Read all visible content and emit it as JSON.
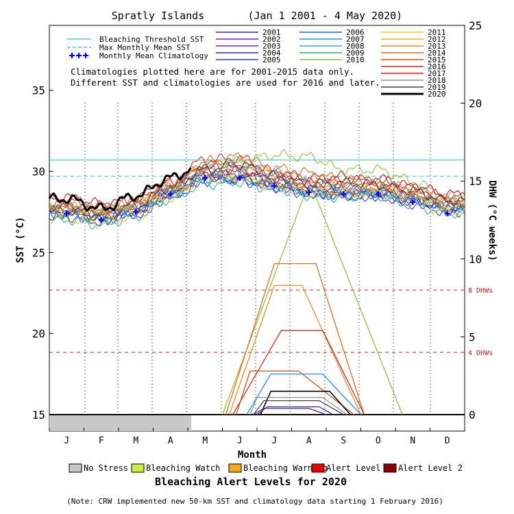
{
  "chart_data": {
    "type": "line",
    "title": "Spratly Islands       (Jan 1 2001 - 4 May 2020)",
    "xlabel": "Month",
    "ylabel_left": "SST (°C)",
    "ylabel_right": "DHW (°C weeks)",
    "ylim_left": [
      15,
      39
    ],
    "ylim_right": [
      0,
      25
    ],
    "yticks_left": [
      "15",
      "20",
      "25",
      "30",
      "35"
    ],
    "yticks_right": [
      "0",
      "5",
      "10",
      "15",
      "20",
      "25"
    ],
    "x_ticks": [
      "J",
      "F",
      "M",
      "A",
      "M",
      "J",
      "J",
      "A",
      "S",
      "O",
      "N",
      "D"
    ],
    "reference_lines": {
      "bleaching_threshold_sst": 30.7,
      "max_monthly_mean_sst": 29.7,
      "dhw_4": 4,
      "dhw_8": 8,
      "dhw_4_label": "4 DHWs",
      "dhw_8_label": "8 DHWs"
    },
    "monthly_mean_climatology": {
      "months": [
        "J",
        "F",
        "M",
        "A",
        "M",
        "J",
        "J",
        "A",
        "S",
        "O",
        "N",
        "D"
      ],
      "values": [
        27.4,
        27.0,
        27.5,
        28.6,
        29.6,
        29.6,
        29.1,
        28.7,
        28.6,
        28.6,
        28.1,
        27.4
      ]
    },
    "alert_2020": {
      "status": "No Stress",
      "through_month": 4.1
    },
    "dhw_peaks": [
      {
        "year": "2010",
        "peak": 14.0,
        "start": 5.0,
        "peak_start": 7.35,
        "peak_end": 7.7,
        "end": 10.2
      },
      {
        "year": "2014",
        "peak": 9.7,
        "start": 5.1,
        "peak_start": 6.5,
        "peak_end": 7.7,
        "end": 9.1
      },
      {
        "year": "2013",
        "peak": 8.3,
        "start": 5.2,
        "peak_start": 6.5,
        "peak_end": 7.3,
        "end": 9.0
      },
      {
        "year": "2016",
        "peak": 5.4,
        "start": 5.3,
        "peak_start": 6.7,
        "peak_end": 7.9,
        "end": 9.1
      },
      {
        "year": "2015",
        "peak": 2.8,
        "start": 5.4,
        "peak_start": 5.8,
        "peak_end": 7.2,
        "end": 8.8
      },
      {
        "year": "2007",
        "peak": 2.6,
        "start": 5.7,
        "peak_start": 6.4,
        "peak_end": 7.9,
        "end": 9.0
      },
      {
        "year": "2020",
        "peak": 1.5,
        "start": 6.1,
        "peak_start": 6.4,
        "peak_end": 8.1,
        "end": 8.7
      },
      {
        "year": "2018",
        "peak": 1.1,
        "start": 5.8,
        "peak_start": 6.0,
        "peak_end": 7.9,
        "end": 8.6
      },
      {
        "year": "2019",
        "peak": 0.9,
        "start": 5.9,
        "peak_start": 6.2,
        "peak_end": 7.8,
        "end": 8.5
      },
      {
        "year": "2004",
        "peak": 0.5,
        "start": 6.0,
        "peak_start": 6.3,
        "peak_end": 7.8,
        "end": 8.2
      },
      {
        "year": "2001",
        "peak": 0.4,
        "start": 5.9,
        "peak_start": 6.2,
        "peak_end": 7.5,
        "end": 8.0
      }
    ],
    "annual_sst_profiles": [
      {
        "year": "2001",
        "values": [
          27.6,
          27.2,
          27.7,
          28.6,
          29.9,
          29.6,
          29.1,
          28.9,
          28.8,
          28.6,
          28.3,
          27.6
        ]
      },
      {
        "year": "2002",
        "values": [
          27.4,
          27.0,
          27.5,
          28.8,
          29.8,
          29.5,
          29.0,
          28.7,
          28.5,
          28.9,
          28.5,
          27.9
        ]
      },
      {
        "year": "2003",
        "values": [
          27.8,
          27.3,
          27.4,
          28.5,
          29.5,
          29.9,
          29.4,
          28.8,
          28.7,
          28.4,
          28.0,
          27.5
        ]
      },
      {
        "year": "2004",
        "values": [
          27.2,
          26.9,
          27.6,
          28.7,
          29.7,
          29.8,
          29.2,
          28.6,
          28.6,
          28.7,
          28.2,
          27.8
        ]
      },
      {
        "year": "2005",
        "values": [
          27.5,
          27.1,
          27.3,
          28.4,
          29.4,
          29.5,
          29.3,
          28.9,
          28.4,
          28.5,
          28.1,
          27.6
        ]
      },
      {
        "year": "2006",
        "values": [
          27.3,
          27.0,
          27.6,
          28.9,
          29.6,
          29.4,
          29.0,
          28.6,
          28.8,
          28.6,
          28.4,
          27.9
        ]
      },
      {
        "year": "2007",
        "values": [
          27.7,
          27.4,
          27.8,
          28.8,
          30.2,
          30.4,
          29.9,
          29.3,
          29.0,
          28.7,
          28.3,
          27.8
        ]
      },
      {
        "year": "2008",
        "values": [
          27.0,
          26.7,
          27.2,
          28.3,
          29.2,
          29.3,
          28.9,
          28.5,
          28.4,
          28.5,
          27.9,
          27.4
        ]
      },
      {
        "year": "2009",
        "values": [
          27.4,
          27.1,
          27.6,
          28.6,
          29.6,
          29.7,
          29.2,
          28.8,
          28.6,
          28.8,
          28.4,
          27.7
        ]
      },
      {
        "year": "2010",
        "values": [
          27.9,
          27.6,
          28.0,
          29.1,
          30.4,
          30.6,
          31.0,
          30.9,
          30.1,
          30.1,
          29.4,
          28.4
        ]
      },
      {
        "year": "2011",
        "values": [
          27.1,
          26.8,
          27.3,
          28.4,
          29.5,
          29.6,
          29.1,
          28.7,
          28.7,
          28.6,
          28.2,
          27.5
        ]
      },
      {
        "year": "2012",
        "values": [
          27.6,
          27.3,
          27.7,
          28.7,
          29.8,
          29.7,
          29.3,
          28.9,
          28.7,
          28.9,
          28.5,
          27.9
        ]
      },
      {
        "year": "2013",
        "values": [
          27.8,
          27.5,
          28.0,
          29.0,
          30.3,
          30.5,
          29.9,
          29.2,
          29.1,
          29.0,
          28.6,
          28.0
        ]
      },
      {
        "year": "2014",
        "values": [
          27.7,
          27.4,
          27.9,
          29.2,
          30.6,
          30.9,
          30.2,
          29.9,
          29.5,
          29.2,
          28.8,
          28.1
        ]
      },
      {
        "year": "2015",
        "values": [
          27.9,
          27.6,
          28.1,
          29.1,
          30.1,
          30.3,
          29.8,
          29.4,
          29.3,
          29.1,
          28.7,
          28.2
        ]
      },
      {
        "year": "2016",
        "values": [
          28.2,
          27.9,
          28.4,
          29.5,
          30.7,
          30.8,
          30.0,
          29.6,
          29.7,
          29.4,
          29.0,
          28.4
        ]
      },
      {
        "year": "2017",
        "values": [
          28.4,
          28.0,
          28.3,
          29.3,
          30.2,
          30.1,
          29.6,
          29.3,
          29.4,
          29.5,
          29.1,
          28.6
        ]
      },
      {
        "year": "2018",
        "values": [
          28.0,
          27.7,
          28.0,
          29.0,
          30.0,
          30.3,
          29.5,
          29.1,
          29.2,
          29.3,
          28.9,
          28.3
        ]
      },
      {
        "year": "2019",
        "values": [
          27.6,
          27.4,
          27.9,
          29.0,
          30.1,
          30.4,
          29.7,
          29.2,
          29.3,
          29.2,
          28.8,
          28.2
        ]
      },
      {
        "year": "2020",
        "values": [
          28.3,
          27.7,
          28.5,
          29.6,
          30.6
        ]
      }
    ]
  },
  "legend": {
    "lines": [
      {
        "label": "Bleaching Threshold SST",
        "color": "#20c8d8",
        "dash": "solid"
      },
      {
        "label": "Max Monthly Mean SST",
        "color": "#20c8d8",
        "dash": "dashed"
      },
      {
        "label": "Monthly Mean Climatology",
        "color": "#0000ff",
        "dash": "plus"
      }
    ],
    "years": [
      {
        "label": "2001",
        "color": "#5a1a8c"
      },
      {
        "label": "2002",
        "color": "#7a22c0"
      },
      {
        "label": "2003",
        "color": "#5b2bd8"
      },
      {
        "label": "2004",
        "color": "#2a2ab8"
      },
      {
        "label": "2005",
        "color": "#1e3bd0"
      },
      {
        "label": "2006",
        "color": "#1a5ef0"
      },
      {
        "label": "2007",
        "color": "#1e90ff"
      },
      {
        "label": "2008",
        "color": "#22b0e8"
      },
      {
        "label": "2009",
        "color": "#20b060"
      },
      {
        "label": "2010",
        "color": "#8cc43c"
      },
      {
        "label": "2011",
        "color": "#f8c810"
      },
      {
        "label": "2012",
        "color": "#f8a818"
      },
      {
        "label": "2013",
        "color": "#f08a18"
      },
      {
        "label": "2014",
        "color": "#e86c10"
      },
      {
        "label": "2015",
        "color": "#e04a10"
      },
      {
        "label": "2016",
        "color": "#e02818"
      },
      {
        "label": "2017",
        "color": "#e01010"
      },
      {
        "label": "2018",
        "color": "#909090"
      },
      {
        "label": "2019",
        "color": "#404040"
      },
      {
        "label": "2020",
        "color": "#000000"
      }
    ]
  },
  "notes": {
    "line1": "Climatologies plotted here are for 2001-2015 data only.",
    "line2": "Different SST and climatologies are used for 2016 and later."
  },
  "alert_levels": {
    "title": "Bleaching Alert Levels for 2020",
    "items": [
      {
        "label": "No Stress",
        "color": "#c8c8c8"
      },
      {
        "label": "Bleaching Watch",
        "color": "#c8f040"
      },
      {
        "label": "Bleaching Warning",
        "color": "#f8a818"
      },
      {
        "label": "Alert Level 1",
        "color": "#f00000"
      },
      {
        "label": "Alert Level 2",
        "color": "#8c0000"
      }
    ]
  },
  "footnote": "(Note: CRW implemented new 50-km SST and climatology data starting 1 February 2016)"
}
